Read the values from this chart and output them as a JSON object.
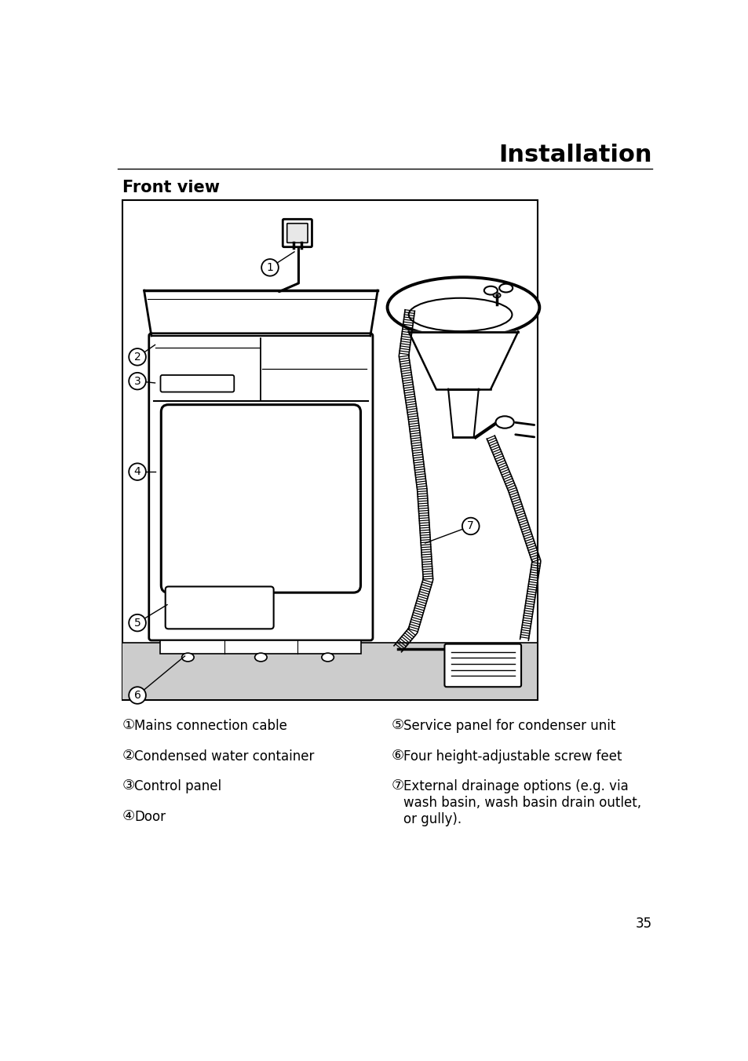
{
  "title": "Installation",
  "subtitle": "Front view",
  "page_number": "35",
  "bg": "#ffffff",
  "legend_left": [
    [
      "①",
      "Mains connection cable"
    ],
    [
      "②",
      "Condensed water container"
    ],
    [
      "③",
      "Control panel"
    ],
    [
      "④",
      "Door"
    ]
  ],
  "legend_right": [
    [
      "⑤",
      "Service panel for condenser unit"
    ],
    [
      "⑥",
      "Four height-adjustable screw feet"
    ],
    [
      "⑦",
      "External drainage options (e.g. via\nwash basin, wash basin drain outlet,\nor gully)."
    ]
  ],
  "title_fontsize": 22,
  "subtitle_fontsize": 15,
  "legend_fontsize": 12,
  "page_num_fontsize": 12
}
